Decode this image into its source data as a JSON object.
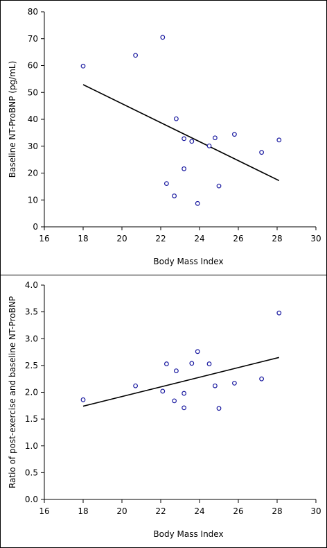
{
  "chart_data": [
    {
      "type": "scatter",
      "xlabel": "Body Mass Index",
      "ylabel": "Baseline NT-ProBNP (pg/mL)",
      "xlim": [
        16,
        30
      ],
      "ylim": [
        0,
        80
      ],
      "xticks": [
        "16",
        "18",
        "20",
        "22",
        "24",
        "26",
        "28",
        "30"
      ],
      "yticks": [
        "0",
        "10",
        "20",
        "30",
        "40",
        "50",
        "60",
        "70",
        "80"
      ],
      "points": [
        {
          "x": 18.0,
          "y": 59.8
        },
        {
          "x": 20.7,
          "y": 63.8
        },
        {
          "x": 22.1,
          "y": 70.5
        },
        {
          "x": 22.3,
          "y": 16.1
        },
        {
          "x": 22.7,
          "y": 11.5
        },
        {
          "x": 22.8,
          "y": 40.2
        },
        {
          "x": 23.2,
          "y": 21.6
        },
        {
          "x": 23.2,
          "y": 32.8
        },
        {
          "x": 23.6,
          "y": 31.8
        },
        {
          "x": 23.9,
          "y": 8.7
        },
        {
          "x": 24.5,
          "y": 30.1
        },
        {
          "x": 24.8,
          "y": 33.1
        },
        {
          "x": 25.0,
          "y": 15.2
        },
        {
          "x": 25.8,
          "y": 34.4
        },
        {
          "x": 27.2,
          "y": 27.7
        },
        {
          "x": 28.1,
          "y": 32.3
        }
      ],
      "trendline": [
        {
          "x": 18.0,
          "y": 52.9
        },
        {
          "x": 28.1,
          "y": 17.2
        }
      ],
      "grid": false
    },
    {
      "type": "scatter",
      "xlabel": "Body Mass Index",
      "ylabel": "Ratio of post-exercise and baseline NT-ProBNP",
      "xlim": [
        16,
        30
      ],
      "ylim": [
        0,
        4
      ],
      "xticks": [
        "16",
        "18",
        "20",
        "22",
        "24",
        "26",
        "28",
        "30"
      ],
      "yticks": [
        "0.0",
        "0.5",
        "1.0",
        "1.5",
        "2.0",
        "2.5",
        "3.0",
        "3.5",
        "4.0"
      ],
      "points": [
        {
          "x": 18.0,
          "y": 1.86
        },
        {
          "x": 20.7,
          "y": 2.12
        },
        {
          "x": 22.1,
          "y": 2.02
        },
        {
          "x": 22.3,
          "y": 2.53
        },
        {
          "x": 22.7,
          "y": 1.84
        },
        {
          "x": 22.8,
          "y": 2.4
        },
        {
          "x": 23.2,
          "y": 1.98
        },
        {
          "x": 23.2,
          "y": 1.71
        },
        {
          "x": 23.6,
          "y": 2.54
        },
        {
          "x": 23.9,
          "y": 2.76
        },
        {
          "x": 24.5,
          "y": 2.53
        },
        {
          "x": 24.8,
          "y": 2.12
        },
        {
          "x": 25.0,
          "y": 1.7
        },
        {
          "x": 25.8,
          "y": 2.17
        },
        {
          "x": 27.2,
          "y": 2.25
        },
        {
          "x": 28.1,
          "y": 3.48
        }
      ],
      "trendline": [
        {
          "x": 18.0,
          "y": 1.74
        },
        {
          "x": 28.1,
          "y": 2.65
        }
      ],
      "grid": false
    }
  ]
}
